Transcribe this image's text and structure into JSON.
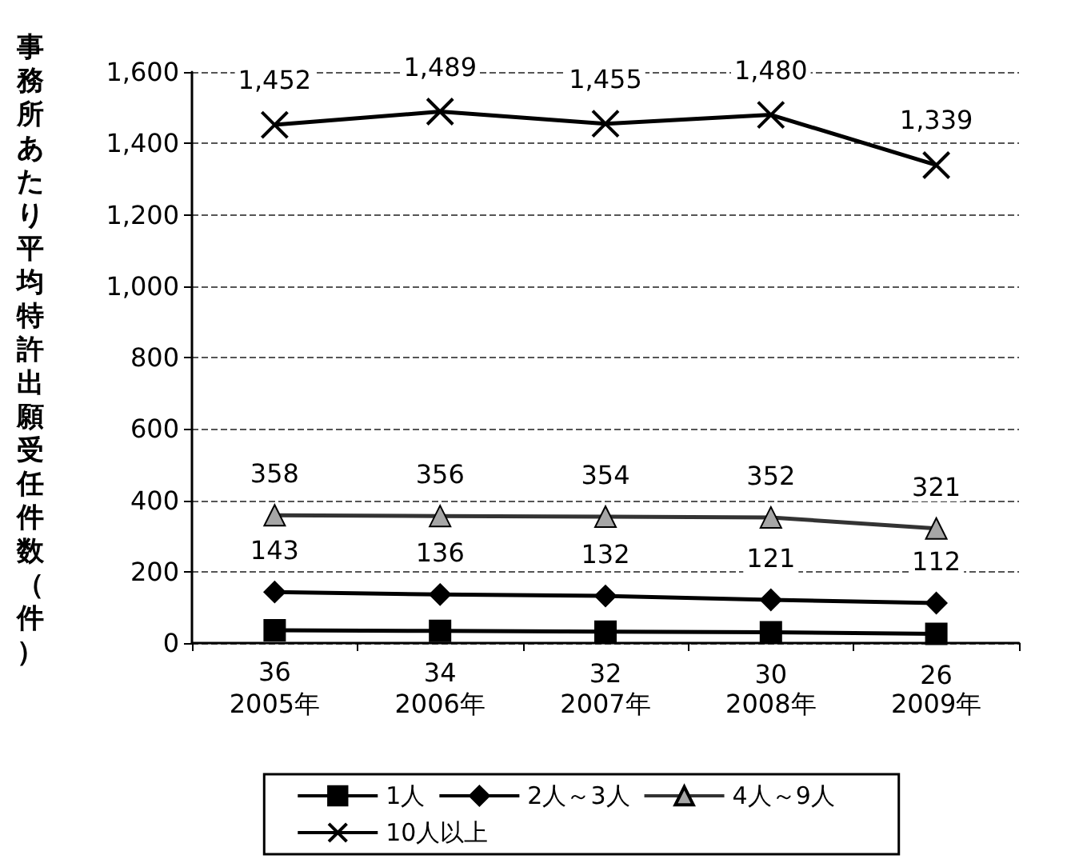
{
  "chart_data": {
    "type": "line",
    "ylabel": "事務所あたり平均特許出願受任件数（件）",
    "categories": [
      "2005年",
      "2006年",
      "2007年",
      "2008年",
      "2009年"
    ],
    "series": [
      {
        "name": "1人",
        "color": "#000000",
        "marker": "square",
        "values": [
          36,
          34,
          32,
          30,
          26
        ],
        "value_labels": [
          "36",
          "34",
          "32",
          "30",
          "26"
        ]
      },
      {
        "name": "2人～3人",
        "color": "#000000",
        "marker": "diamond",
        "values": [
          143,
          136,
          132,
          121,
          112
        ],
        "value_labels": [
          "143",
          "136",
          "132",
          "121",
          "112"
        ]
      },
      {
        "name": "4人～9人",
        "color": "#a6a6a6",
        "marker": "triangle",
        "values": [
          358,
          356,
          354,
          352,
          321
        ],
        "value_labels": [
          "358",
          "356",
          "354",
          "352",
          "321"
        ]
      },
      {
        "name": "10人以上",
        "color": "#000000",
        "marker": "cross",
        "values": [
          1452,
          1489,
          1455,
          1480,
          1339
        ],
        "value_labels": [
          "1,452",
          "1,489",
          "1,455",
          "1,480",
          "1,339"
        ]
      }
    ],
    "ylim": [
      0,
      1600
    ],
    "yticks": [
      0,
      200,
      400,
      600,
      800,
      {
        "value": 1000,
        "label": "1,000"
      },
      {
        "value": 1200,
        "label": "1,200"
      },
      {
        "value": 1400,
        "label": "1,400"
      },
      {
        "value": 1600,
        "label": "1,600"
      }
    ],
    "grid": "y",
    "legend": "bottom",
    "line_style": "solid"
  }
}
